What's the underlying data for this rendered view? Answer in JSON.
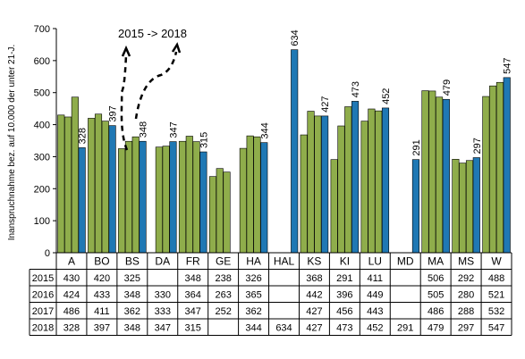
{
  "chart_data": {
    "type": "bar",
    "ylabel": "Inanspruchnahme bez. auf 10.000 der unter 21-J.",
    "ylim": [
      0,
      700
    ],
    "yticks": [
      0,
      100,
      200,
      300,
      400,
      500,
      600,
      700
    ],
    "grid": false,
    "annotation": "2015 -> 2018",
    "categories": [
      "A",
      "BO",
      "BS",
      "DA",
      "FR",
      "GE",
      "HA",
      "HAL",
      "KS",
      "KI",
      "LU",
      "MD",
      "MA",
      "MS",
      "W"
    ],
    "series": [
      {
        "name": "2015",
        "color": "#8fad4b",
        "values": [
          430,
          420,
          325,
          null,
          348,
          238,
          326,
          null,
          368,
          291,
          411,
          null,
          506,
          292,
          488
        ]
      },
      {
        "name": "2016",
        "color": "#8fad4b",
        "values": [
          424,
          433,
          348,
          330,
          364,
          263,
          365,
          null,
          442,
          396,
          449,
          null,
          505,
          280,
          521
        ]
      },
      {
        "name": "2017",
        "color": "#8fad4b",
        "values": [
          486,
          411,
          362,
          333,
          347,
          252,
          362,
          null,
          427,
          456,
          443,
          null,
          486,
          288,
          532
        ]
      },
      {
        "name": "2018",
        "color": "#1f78b4",
        "values": [
          328,
          397,
          348,
          347,
          315,
          null,
          344,
          634,
          427,
          473,
          452,
          291,
          479,
          297,
          547
        ]
      }
    ],
    "table_rows": [
      {
        "label": "2015",
        "cells": [
          "430",
          "420",
          "325",
          "",
          "348",
          "238",
          "326",
          "",
          "368",
          "291",
          "411",
          "",
          "506",
          "292",
          "488"
        ]
      },
      {
        "label": "2016",
        "cells": [
          "424",
          "433",
          "348",
          "330",
          "364",
          "263",
          "365",
          "",
          "442",
          "396",
          "449",
          "",
          "505",
          "280",
          "521"
        ]
      },
      {
        "label": "2017",
        "cells": [
          "486",
          "411",
          "362",
          "333",
          "347",
          "252",
          "362",
          "",
          "427",
          "456",
          "443",
          "",
          "486",
          "288",
          "532"
        ]
      },
      {
        "label": "2018",
        "cells": [
          "328",
          "397",
          "348",
          "347",
          "315",
          "",
          "344",
          "634",
          "427",
          "473",
          "452",
          "291",
          "479",
          "297",
          "547"
        ]
      }
    ],
    "data_labels": [
      "328",
      "397",
      "348",
      "347",
      "315",
      "344",
      "634",
      "427",
      "473",
      "452",
      "291",
      "479",
      "297",
      "547"
    ]
  }
}
